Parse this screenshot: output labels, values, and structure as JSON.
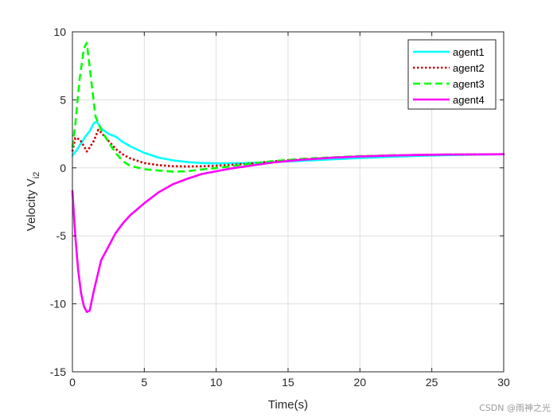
{
  "chart_data": {
    "type": "line",
    "title": "",
    "xlabel": "Time(s)",
    "ylabel_main": "Velocity V",
    "ylabel_sub": "i2",
    "xlim": [
      0,
      30
    ],
    "ylim": [
      -15,
      10
    ],
    "xticks": [
      0,
      5,
      10,
      15,
      20,
      25,
      30
    ],
    "yticks": [
      -15,
      -10,
      -5,
      0,
      5,
      10
    ],
    "grid": true,
    "legend_position": "top-right",
    "series": [
      {
        "name": "agent1",
        "color": "#00ffff",
        "style": "solid",
        "x": [
          0,
          0.3,
          0.6,
          0.9,
          1.2,
          1.5,
          1.7,
          2.0,
          2.5,
          3.0,
          3.5,
          4,
          5,
          6,
          7,
          8,
          9,
          10,
          12,
          14,
          16,
          18,
          20,
          22,
          24,
          26,
          28,
          30
        ],
        "y": [
          0.9,
          1.3,
          1.8,
          2.3,
          2.7,
          3.3,
          3.4,
          2.9,
          2.5,
          2.3,
          1.9,
          1.6,
          1.1,
          0.75,
          0.55,
          0.42,
          0.35,
          0.33,
          0.35,
          0.42,
          0.52,
          0.62,
          0.72,
          0.8,
          0.88,
          0.93,
          0.97,
          1.0
        ]
      },
      {
        "name": "agent2",
        "color": "#cc0000",
        "style": "dotted",
        "x": [
          0,
          0.2,
          0.5,
          0.8,
          1.0,
          1.2,
          1.5,
          1.8,
          2.0,
          2.5,
          3.0,
          3.5,
          4,
          5,
          6,
          7,
          8,
          9,
          10,
          12,
          14,
          16,
          18,
          20,
          22,
          24,
          26,
          28,
          30
        ],
        "y": [
          1.2,
          2.2,
          2.1,
          1.6,
          1.2,
          1.5,
          2.0,
          2.8,
          2.6,
          2.0,
          1.4,
          1.0,
          0.7,
          0.35,
          0.2,
          0.12,
          0.1,
          0.12,
          0.15,
          0.28,
          0.48,
          0.62,
          0.75,
          0.84,
          0.9,
          0.94,
          0.97,
          0.99,
          1.0
        ]
      },
      {
        "name": "agent3",
        "color": "#00ff00",
        "style": "dashed",
        "x": [
          0,
          0.2,
          0.5,
          0.8,
          1.0,
          1.3,
          1.6,
          2.0,
          2.5,
          3.0,
          3.5,
          4,
          5,
          6,
          7,
          8,
          9,
          10,
          11,
          12,
          14,
          16,
          18,
          20,
          22,
          24,
          26,
          28,
          30
        ],
        "y": [
          1.5,
          3.2,
          6.5,
          8.8,
          9.2,
          6.5,
          3.8,
          2.8,
          1.9,
          1.1,
          0.5,
          0.15,
          -0.1,
          -0.2,
          -0.28,
          -0.25,
          -0.12,
          -0.02,
          0.12,
          0.25,
          0.5,
          0.66,
          0.77,
          0.86,
          0.92,
          0.95,
          0.98,
          0.99,
          1.0
        ]
      },
      {
        "name": "agent4",
        "color": "#ff00ff",
        "style": "solid",
        "x": [
          0,
          0.2,
          0.4,
          0.6,
          0.8,
          1.0,
          1.2,
          1.5,
          2.0,
          2.5,
          3.0,
          3.5,
          4,
          5,
          6,
          7,
          8,
          9,
          10,
          11,
          12,
          13,
          14,
          16,
          18,
          20,
          22,
          24,
          26,
          28,
          30
        ],
        "y": [
          -1.7,
          -5.0,
          -7.5,
          -9.2,
          -10.2,
          -10.6,
          -10.5,
          -9.0,
          -6.8,
          -5.8,
          -4.8,
          -4.1,
          -3.5,
          -2.6,
          -1.8,
          -1.2,
          -0.8,
          -0.45,
          -0.25,
          -0.05,
          0.1,
          0.25,
          0.4,
          0.6,
          0.74,
          0.84,
          0.9,
          0.95,
          0.98,
          0.99,
          1.0
        ]
      }
    ]
  },
  "watermark": "CSDN @雨神之光"
}
